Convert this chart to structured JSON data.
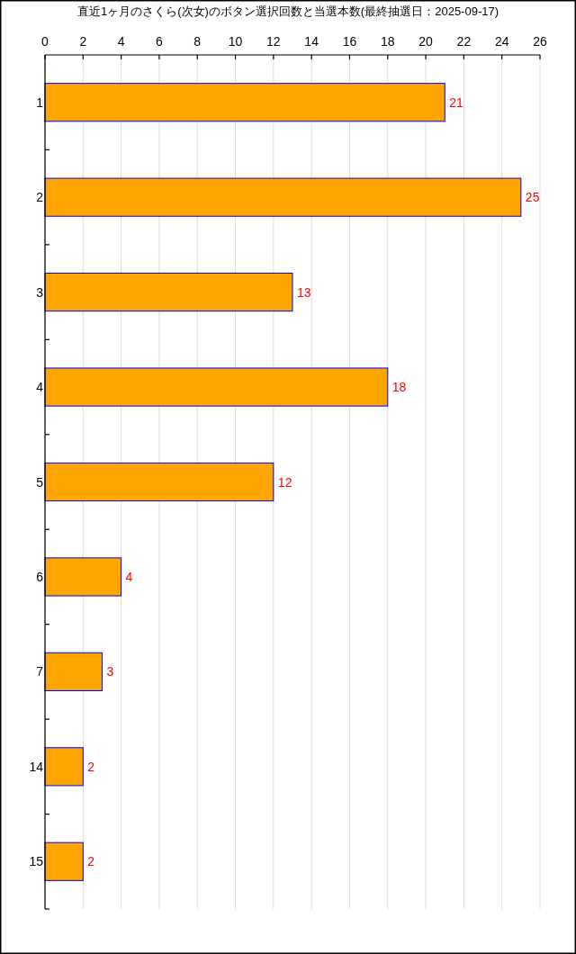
{
  "chart_data": {
    "type": "bar",
    "orientation": "horizontal",
    "title": "直近1ヶ月のさくら(次女)のボタン選択回数と当選本数(最終抽選日：2025-09-17)",
    "categories": [
      "1",
      "2",
      "3",
      "4",
      "5",
      "6",
      "7",
      "14",
      "15"
    ],
    "values": [
      21,
      25,
      13,
      18,
      12,
      4,
      3,
      2,
      2
    ],
    "color": "#ffa500",
    "xlim": [
      0,
      26
    ],
    "xticks": [
      0,
      2,
      4,
      6,
      8,
      10,
      12,
      14,
      16,
      18,
      20,
      22,
      24,
      26
    ],
    "grid": "x",
    "data_labels": true
  }
}
